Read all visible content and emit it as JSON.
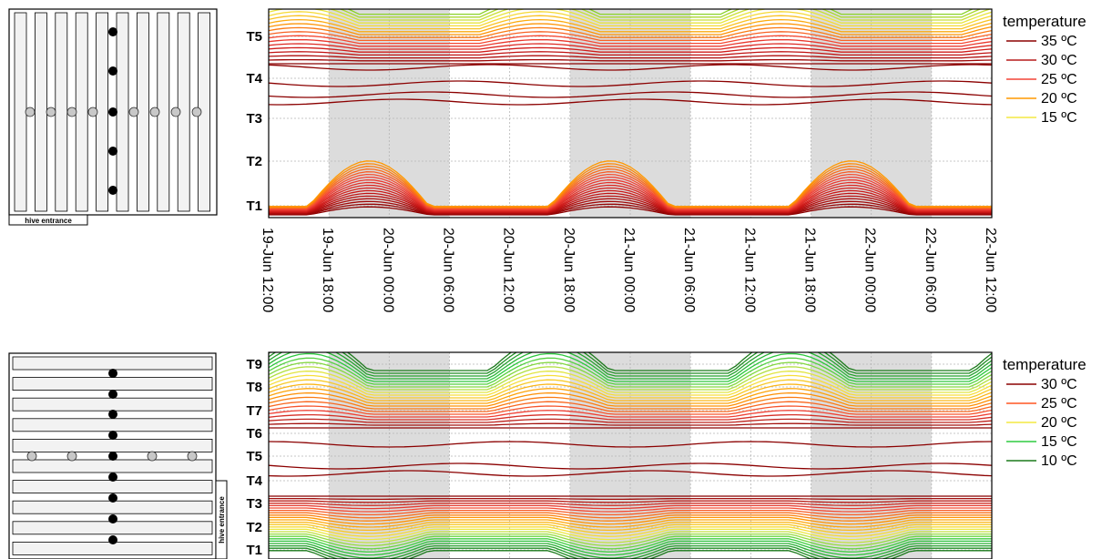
{
  "chart_data": [
    {
      "type": "contour",
      "x_ticks": [
        "19-Jun 12:00",
        "19-Jun 18:00",
        "20-Jun 00:00",
        "20-Jun 06:00",
        "20-Jun 12:00",
        "20-Jun 18:00",
        "21-Jun 00:00",
        "21-Jun 06:00",
        "21-Jun 12:00",
        "21-Jun 18:00",
        "22-Jun 00:00",
        "22-Jun 06:00",
        "22-Jun 12:00"
      ],
      "x_range_hours": [
        0,
        72
      ],
      "night_bands_hours": [
        [
          6,
          18
        ],
        [
          30,
          42
        ],
        [
          54,
          66
        ]
      ],
      "y_ticks": [
        "T1",
        "T2",
        "T3",
        "T4",
        "T5"
      ],
      "legend_title": "temperature",
      "legend": [
        {
          "label": "35 ºC",
          "value": 35,
          "color": "#8b0000"
        },
        {
          "label": "30 ºC",
          "value": 30,
          "color": "#b71c1c"
        },
        {
          "label": "25 ºC",
          "value": 25,
          "color": "#f44336"
        },
        {
          "label": "20 ºC",
          "value": 20,
          "color": "#ff9800"
        },
        {
          "label": "15 ºC",
          "value": 15,
          "color": "#f4e842"
        }
      ],
      "hive_label": "hive entrance"
    },
    {
      "type": "contour",
      "x_range_hours": [
        0,
        72
      ],
      "night_bands_hours": [
        [
          6,
          18
        ],
        [
          30,
          42
        ],
        [
          54,
          66
        ]
      ],
      "y_ticks": [
        "T1",
        "T2",
        "T3",
        "T4",
        "T5",
        "T6",
        "T7",
        "T8",
        "T9"
      ],
      "legend_title": "temperature",
      "legend": [
        {
          "label": "30 ºC",
          "value": 30,
          "color": "#8b0000"
        },
        {
          "label": "25 ºC",
          "value": 25,
          "color": "#ff5722"
        },
        {
          "label": "20 ºC",
          "value": 20,
          "color": "#f4e842"
        },
        {
          "label": "15 ºC",
          "value": 15,
          "color": "#2ecc40"
        },
        {
          "label": "10 ºC",
          "value": 10,
          "color": "#1b7a1b"
        }
      ],
      "hive_label": "hive entrance"
    }
  ]
}
